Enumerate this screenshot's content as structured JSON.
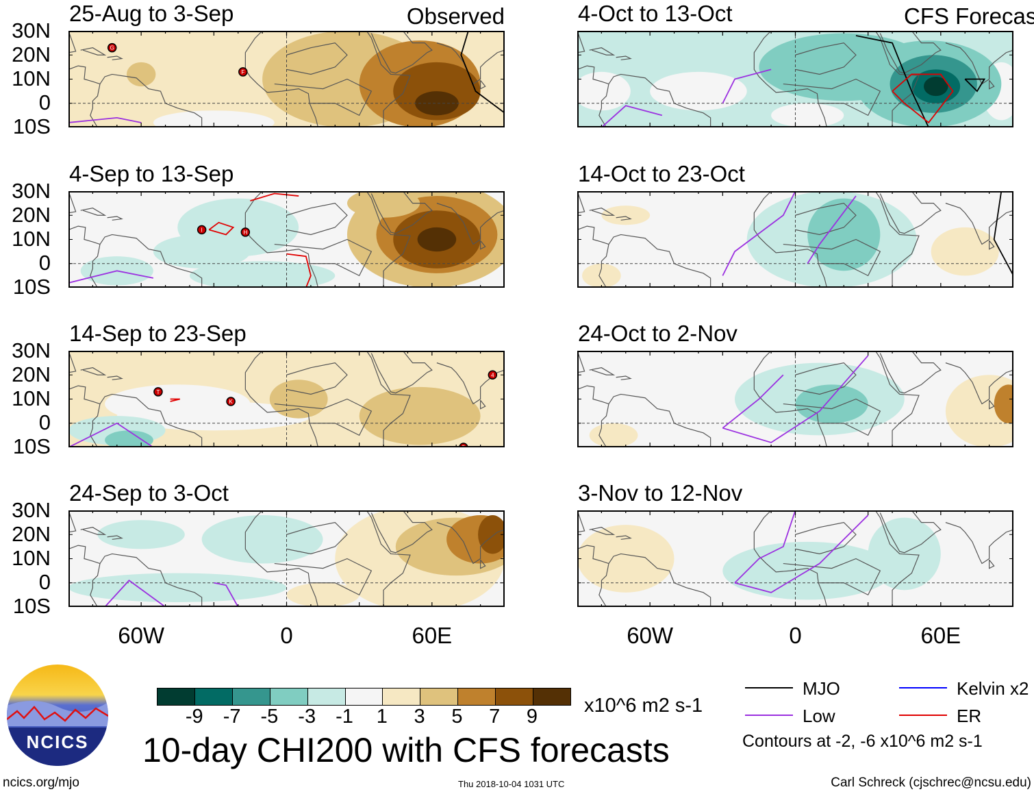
{
  "figure_title": "10-day CHI200 with CFS forecasts",
  "left_column_label": "Observed",
  "right_column_label": "CFS Forecast",
  "lat_ticks": [
    "30N",
    "20N",
    "10N",
    "0",
    "10S"
  ],
  "lon_ticks": [
    "60W",
    "0",
    "60E"
  ],
  "panels": [
    {
      "title": "25-Aug to 3-Sep",
      "column": "left",
      "base": 2,
      "blobs": [
        [
          -45,
          15,
          60,
          20,
          2
        ],
        [
          -60,
          12,
          6,
          5,
          4
        ],
        [
          25,
          10,
          35,
          20,
          4
        ],
        [
          55,
          8,
          25,
          18,
          6
        ],
        [
          62,
          5,
          18,
          12,
          8
        ],
        [
          62,
          0,
          9,
          5,
          10
        ],
        [
          -60,
          -5,
          25,
          10,
          1
        ],
        [
          -30,
          -8,
          25,
          5,
          0
        ]
      ],
      "storms": [
        {
          "label": "G",
          "lon": -72,
          "lat": 23
        },
        {
          "label": "F",
          "lon": -18,
          "lat": 13
        }
      ],
      "contours": [
        {
          "type": "Low",
          "pts": [
            [
              -90,
              -8
            ],
            [
              -70,
              -6
            ],
            [
              -60,
              -8
            ]
          ]
        },
        {
          "type": "MJO",
          "pts": [
            [
              75,
              30
            ],
            [
              72,
              20
            ],
            [
              78,
              5
            ],
            [
              90,
              -4
            ]
          ]
        }
      ]
    },
    {
      "title": "4-Sep to 13-Sep",
      "column": "left",
      "base": 0,
      "blobs": [
        [
          -20,
          15,
          25,
          12,
          -2
        ],
        [
          -35,
          5,
          20,
          7,
          -2
        ],
        [
          -10,
          -5,
          30,
          6,
          -2
        ],
        [
          -70,
          -3,
          15,
          6,
          -2
        ],
        [
          60,
          12,
          35,
          22,
          3
        ],
        [
          62,
          12,
          25,
          16,
          6
        ],
        [
          62,
          10,
          18,
          12,
          8
        ],
        [
          62,
          10,
          8,
          5,
          10
        ],
        [
          40,
          25,
          15,
          6,
          3
        ]
      ],
      "storms": [
        {
          "label": "I",
          "lon": -35,
          "lat": 14
        },
        {
          "label": "H",
          "lon": -17,
          "lat": 13
        }
      ],
      "contours": [
        {
          "type": "ER",
          "pts": [
            [
              -32,
              14
            ],
            [
              -28,
              17
            ],
            [
              -22,
              15
            ],
            [
              -25,
              12
            ],
            [
              -32,
              14
            ]
          ]
        },
        {
          "type": "ER",
          "pts": [
            [
              0,
              4
            ],
            [
              8,
              3
            ],
            [
              10,
              -5
            ],
            [
              8,
              -10
            ]
          ]
        },
        {
          "type": "ER",
          "pts": [
            [
              -15,
              26
            ],
            [
              -5,
              29
            ],
            [
              5,
              28
            ]
          ]
        },
        {
          "type": "Low",
          "pts": [
            [
              -90,
              -8
            ],
            [
              -70,
              -3
            ],
            [
              -55,
              -6
            ]
          ]
        }
      ]
    },
    {
      "title": "14-Sep to 23-Sep",
      "column": "left",
      "base": 2,
      "blobs": [
        [
          -45,
          8,
          30,
          8,
          0
        ],
        [
          -30,
          3,
          40,
          6,
          0
        ],
        [
          -70,
          -3,
          20,
          6,
          -2
        ],
        [
          -65,
          -7,
          10,
          4,
          -4
        ],
        [
          5,
          10,
          12,
          8,
          4
        ],
        [
          55,
          3,
          25,
          12,
          4
        ]
      ],
      "storms": [
        {
          "label": "T",
          "lon": -53,
          "lat": 13
        },
        {
          "label": "K",
          "lon": -23,
          "lat": 9
        },
        {
          "label": "4",
          "lon": 85,
          "lat": 20
        },
        {
          "label": "5",
          "lon": 73,
          "lat": -10
        }
      ],
      "contours": [
        {
          "type": "Low",
          "pts": [
            [
              -90,
              -10
            ],
            [
              -70,
              0
            ],
            [
              -55,
              -10
            ]
          ]
        },
        {
          "type": "ER",
          "pts": [
            [
              -48,
              10
            ],
            [
              -44,
              10
            ],
            [
              -48,
              9
            ]
          ]
        }
      ]
    },
    {
      "title": "24-Sep to 3-Oct",
      "column": "left",
      "base": 0,
      "blobs": [
        [
          -45,
          -2,
          45,
          6,
          -2
        ],
        [
          -10,
          18,
          25,
          10,
          -2
        ],
        [
          -60,
          20,
          18,
          6,
          -2
        ],
        [
          55,
          10,
          35,
          22,
          2
        ],
        [
          70,
          15,
          25,
          12,
          4
        ],
        [
          80,
          18,
          14,
          10,
          6
        ],
        [
          85,
          20,
          6,
          8,
          8
        ],
        [
          15,
          -5,
          15,
          5,
          2
        ]
      ],
      "storms": [],
      "contours": [
        {
          "type": "Low",
          "pts": [
            [
              -75,
              -10
            ],
            [
              -65,
              1
            ],
            [
              -50,
              -10
            ]
          ]
        },
        {
          "type": "Low",
          "pts": [
            [
              -20,
              -10
            ],
            [
              -25,
              -1
            ],
            [
              -30,
              0
            ]
          ]
        }
      ]
    },
    {
      "title": "4-Oct to 13-Oct",
      "column": "right",
      "base": -2,
      "blobs": [
        [
          -80,
          5,
          12,
          8,
          0
        ],
        [
          -40,
          5,
          20,
          8,
          0
        ],
        [
          5,
          -5,
          15,
          5,
          0
        ],
        [
          85,
          5,
          8,
          12,
          0
        ],
        [
          20,
          15,
          35,
          14,
          -4
        ],
        [
          55,
          8,
          30,
          18,
          -4
        ],
        [
          57,
          8,
          18,
          12,
          -6
        ],
        [
          58,
          7,
          10,
          7,
          -8
        ],
        [
          58,
          7,
          5,
          4,
          -10
        ]
      ],
      "storms": [],
      "contours": [
        {
          "type": "Low",
          "pts": [
            [
              -80,
              -10
            ],
            [
              -70,
              -1
            ],
            [
              -55,
              -5
            ]
          ]
        },
        {
          "type": "Low",
          "pts": [
            [
              -30,
              0
            ],
            [
              -25,
              10
            ],
            [
              -10,
              14
            ]
          ]
        },
        {
          "type": "MJO",
          "pts": [
            [
              25,
              28
            ],
            [
              40,
              25
            ],
            [
              48,
              5
            ],
            [
              55,
              -10
            ]
          ]
        },
        {
          "type": "MJO",
          "pts": [
            [
              70,
              10
            ],
            [
              78,
              10
            ],
            [
              75,
              5
            ],
            [
              70,
              10
            ]
          ]
        },
        {
          "type": "ER",
          "pts": [
            [
              40,
              5
            ],
            [
              48,
              12
            ],
            [
              60,
              12
            ],
            [
              65,
              5
            ],
            [
              55,
              -8
            ],
            [
              45,
              0
            ],
            [
              40,
              5
            ]
          ]
        }
      ]
    },
    {
      "title": "14-Oct to 23-Oct",
      "column": "right",
      "base": 0,
      "blobs": [
        [
          15,
          10,
          35,
          20,
          -2
        ],
        [
          20,
          12,
          15,
          15,
          -4
        ],
        [
          -70,
          20,
          10,
          4,
          2
        ],
        [
          -80,
          -5,
          8,
          5,
          2
        ],
        [
          70,
          5,
          14,
          10,
          2
        ]
      ],
      "storms": [],
      "contours": [
        {
          "type": "Low",
          "pts": [
            [
              -30,
              -5
            ],
            [
              -25,
              5
            ],
            [
              -5,
              20
            ],
            [
              0,
              30
            ]
          ]
        },
        {
          "type": "Low",
          "pts": [
            [
              5,
              0
            ],
            [
              10,
              8
            ],
            [
              25,
              28
            ]
          ]
        },
        {
          "type": "MJO",
          "pts": [
            [
              85,
              30
            ],
            [
              82,
              10
            ],
            [
              90,
              -5
            ]
          ]
        }
      ]
    },
    {
      "title": "24-Oct to 2-Nov",
      "column": "right",
      "base": 0,
      "blobs": [
        [
          10,
          10,
          35,
          15,
          -2
        ],
        [
          15,
          8,
          15,
          8,
          -4
        ],
        [
          80,
          5,
          18,
          15,
          2
        ],
        [
          88,
          8,
          6,
          8,
          6
        ],
        [
          -75,
          -5,
          10,
          5,
          2
        ]
      ],
      "storms": [],
      "contours": [
        {
          "type": "Low",
          "pts": [
            [
              -30,
              -2
            ],
            [
              -15,
              10
            ],
            [
              -5,
              20
            ]
          ]
        },
        {
          "type": "Low",
          "pts": [
            [
              -30,
              -2
            ],
            [
              -10,
              -8
            ],
            [
              10,
              5
            ],
            [
              30,
              28
            ]
          ]
        }
      ]
    },
    {
      "title": "3-Nov to 12-Nov",
      "column": "right",
      "base": 0,
      "blobs": [
        [
          -70,
          10,
          20,
          14,
          2
        ],
        [
          5,
          5,
          35,
          12,
          -2
        ],
        [
          45,
          12,
          15,
          15,
          -2
        ]
      ],
      "storms": [],
      "contours": [
        {
          "type": "Low",
          "pts": [
            [
              -25,
              0
            ],
            [
              -15,
              10
            ],
            [
              -5,
              15
            ],
            [
              0,
              30
            ]
          ]
        },
        {
          "type": "Low",
          "pts": [
            [
              -25,
              0
            ],
            [
              -10,
              -4
            ],
            [
              10,
              8
            ],
            [
              30,
              28
            ]
          ]
        }
      ]
    }
  ],
  "colorbar": {
    "tick_labels": [
      "-9",
      "-7",
      "-5",
      "-3",
      "-1",
      "1",
      "3",
      "5",
      "7",
      "9"
    ],
    "colors": [
      "#013c31",
      "#026b64",
      "#35968e",
      "#80cdc1",
      "#c7eae4",
      "#f5f5f5",
      "#f6e8c3",
      "#dfc27d",
      "#bf812d",
      "#8c510a",
      "#543005"
    ],
    "units": "x10^6 m2 s-1"
  },
  "legend": {
    "items": [
      {
        "label": "MJO",
        "color": "#000000"
      },
      {
        "label": "Kelvin x2",
        "color": "#0000ff"
      },
      {
        "label": "Low",
        "color": "#9b30e0"
      },
      {
        "label": "ER",
        "color": "#e00000"
      }
    ],
    "contours_note": "Contours at -2, -6 x10^6 m2 s-1"
  },
  "logo_text": "NCICS",
  "footer": {
    "url": "ncics.org/mjo",
    "timestamp": "Thu 2018-10-04 1031 UTC",
    "author": "Carl Schreck (cjschrec@ncsu.edu)"
  }
}
